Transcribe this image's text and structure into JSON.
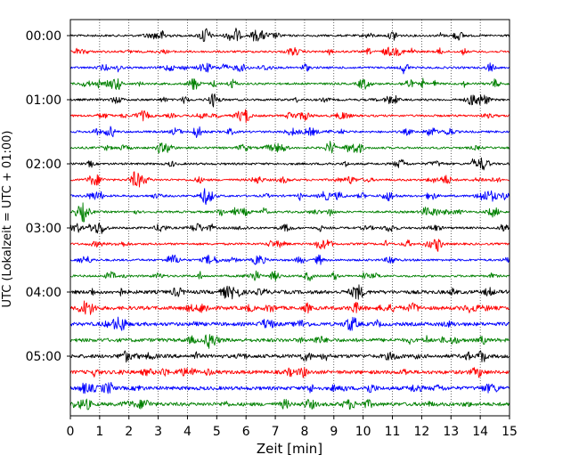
{
  "chart_data": {
    "type": "line",
    "title": "",
    "xlabel": "Zeit  [min]",
    "ylabel": "UTC (Lokalzeit = UTC + 01:00)",
    "xlim": [
      0,
      15
    ],
    "xticks": [
      0,
      1,
      2,
      3,
      4,
      5,
      6,
      7,
      8,
      9,
      10,
      11,
      12,
      13,
      14,
      15
    ],
    "xtick_labels": [
      "0",
      "1",
      "2",
      "3",
      "4",
      "5",
      "6",
      "7",
      "8",
      "9",
      "10",
      "11",
      "12",
      "13",
      "14",
      "15"
    ],
    "y_tick_labels": [
      "00:00",
      "01:00",
      "02:00",
      "03:00",
      "04:00",
      "05:00"
    ],
    "grid": "vertical dotted at each minute",
    "trace_colors": [
      "#000000",
      "#ff0000",
      "#0000ff",
      "#008000"
    ],
    "traces": [
      {
        "start_utc": "00:00",
        "color": "#000000"
      },
      {
        "start_utc": "00:15",
        "color": "#ff0000"
      },
      {
        "start_utc": "00:30",
        "color": "#0000ff"
      },
      {
        "start_utc": "00:45",
        "color": "#008000"
      },
      {
        "start_utc": "01:00",
        "color": "#000000"
      },
      {
        "start_utc": "01:15",
        "color": "#ff0000"
      },
      {
        "start_utc": "01:30",
        "color": "#0000ff"
      },
      {
        "start_utc": "01:45",
        "color": "#008000"
      },
      {
        "start_utc": "02:00",
        "color": "#000000"
      },
      {
        "start_utc": "02:15",
        "color": "#ff0000"
      },
      {
        "start_utc": "02:30",
        "color": "#0000ff"
      },
      {
        "start_utc": "02:45",
        "color": "#008000"
      },
      {
        "start_utc": "03:00",
        "color": "#000000"
      },
      {
        "start_utc": "03:15",
        "color": "#ff0000"
      },
      {
        "start_utc": "03:30",
        "color": "#0000ff"
      },
      {
        "start_utc": "03:45",
        "color": "#008000"
      },
      {
        "start_utc": "04:00",
        "color": "#000000"
      },
      {
        "start_utc": "04:15",
        "color": "#ff0000"
      },
      {
        "start_utc": "04:30",
        "color": "#0000ff"
      },
      {
        "start_utc": "04:45",
        "color": "#008000"
      },
      {
        "start_utc": "05:00",
        "color": "#000000"
      },
      {
        "start_utc": "05:15",
        "color": "#ff0000"
      },
      {
        "start_utc": "05:30",
        "color": "#0000ff"
      },
      {
        "start_utc": "05:45",
        "color": "#008000"
      }
    ]
  }
}
